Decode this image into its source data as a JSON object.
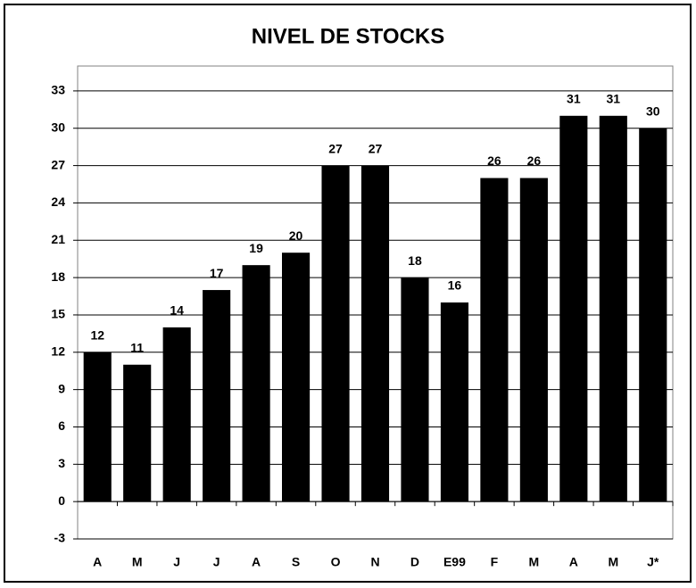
{
  "chart_data": {
    "type": "bar",
    "title": "NIVEL DE STOCKS",
    "categories": [
      "A",
      "M",
      "J",
      "J",
      "A",
      "S",
      "O",
      "N",
      "D",
      "E99",
      "F",
      "M",
      "A",
      "M",
      "J*"
    ],
    "values": [
      12,
      11,
      14,
      17,
      19,
      20,
      27,
      27,
      18,
      16,
      26,
      26,
      31,
      31,
      30
    ],
    "color": "#000000",
    "ylim": [
      -3,
      35
    ],
    "yticks": [
      -3,
      0,
      3,
      6,
      9,
      12,
      15,
      18,
      21,
      24,
      27,
      30,
      33
    ],
    "grid": true
  }
}
